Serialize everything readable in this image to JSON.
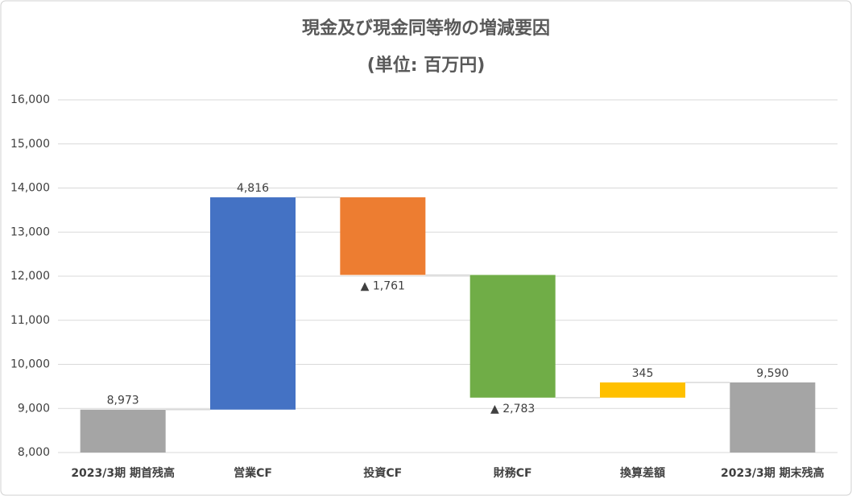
{
  "chart_data": {
    "type": "waterfall",
    "title": "現金及び現金同等物の増減要因",
    "subtitle": "(単位: 百万円)",
    "categories": [
      "2023/3期 期首残高",
      "営業CF",
      "投資CF",
      "財務CF",
      "換算差額",
      "2023/3期 期末残高"
    ],
    "values": [
      8973,
      4816,
      -1761,
      -2783,
      345,
      9590
    ],
    "value_labels": [
      "8,973",
      "4,816",
      "▲ 1,761",
      "▲ 2,783",
      "345",
      "9,590"
    ],
    "is_total": [
      true,
      false,
      false,
      false,
      false,
      true
    ],
    "colors": [
      "#a5a5a5",
      "#4472c4",
      "#ed7d31",
      "#70ad47",
      "#ffc000",
      "#a5a5a5"
    ],
    "ylim": [
      8000,
      16000
    ],
    "yticks": [
      {
        "value": 8000,
        "label": "8,000"
      },
      {
        "value": 9000,
        "label": "9,000"
      },
      {
        "value": 10000,
        "label": "10,000"
      },
      {
        "value": 11000,
        "label": "11,000"
      },
      {
        "value": 12000,
        "label": "12,000"
      },
      {
        "value": 13000,
        "label": "13,000"
      },
      {
        "value": 14000,
        "label": "14,000"
      },
      {
        "value": 15000,
        "label": "15,000"
      },
      {
        "value": 16000,
        "label": "16,000"
      }
    ],
    "grid": true
  }
}
